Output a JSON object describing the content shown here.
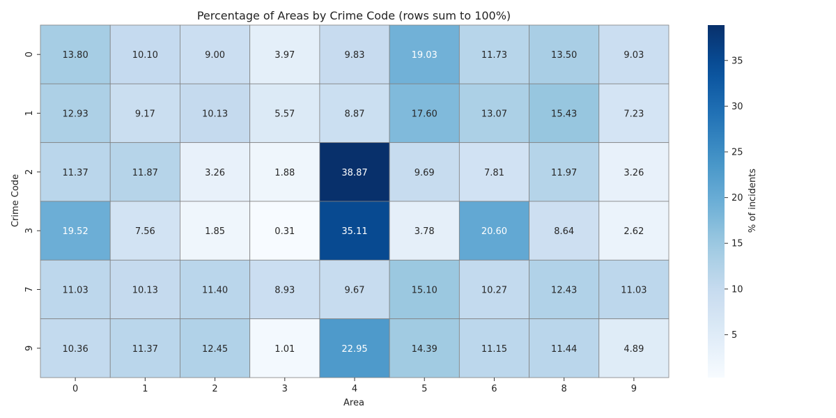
{
  "chart_data": {
    "type": "heatmap",
    "title": "Percentage of Areas by Crime Code (rows sum to 100%)",
    "xlabel": "Area",
    "ylabel": "Crime Code",
    "x_categories": [
      "0",
      "1",
      "2",
      "3",
      "4",
      "5",
      "6",
      "8",
      "9"
    ],
    "y_categories": [
      "0",
      "1",
      "2",
      "3",
      "7",
      "9"
    ],
    "values": [
      [
        13.8,
        10.1,
        9.0,
        3.97,
        9.83,
        19.03,
        11.73,
        13.5,
        9.03
      ],
      [
        12.93,
        9.17,
        10.13,
        5.57,
        8.87,
        17.6,
        13.07,
        15.43,
        7.23
      ],
      [
        11.37,
        11.87,
        3.26,
        1.88,
        38.87,
        9.69,
        7.81,
        11.97,
        3.26
      ],
      [
        19.52,
        7.56,
        1.85,
        0.31,
        35.11,
        3.78,
        20.6,
        8.64,
        2.62
      ],
      [
        11.03,
        10.13,
        11.4,
        8.93,
        9.67,
        15.1,
        10.27,
        12.43,
        11.03
      ],
      [
        10.36,
        11.37,
        12.45,
        1.01,
        22.95,
        14.39,
        11.15,
        11.44,
        4.89
      ]
    ],
    "value_format_decimals": 2,
    "colormap": "Blues",
    "colorbar": {
      "label": "% of incidents",
      "ticks": [
        5,
        10,
        15,
        20,
        25,
        30,
        35
      ],
      "range": [
        0.31,
        38.87
      ]
    },
    "grid": true,
    "cell_border_color": "#808080"
  }
}
